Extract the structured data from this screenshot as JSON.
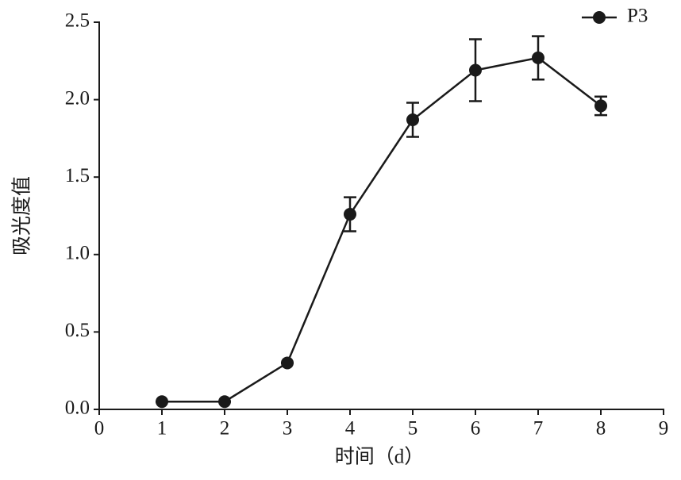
{
  "chart_data": {
    "type": "line",
    "x_label": "时间（d）",
    "y_label": "吸光度值",
    "x": [
      1,
      2,
      3,
      4,
      5,
      6,
      7,
      8
    ],
    "series": [
      {
        "name": "P3",
        "color": "#1a1a1a",
        "values": [
          0.05,
          0.05,
          0.3,
          1.26,
          1.87,
          2.19,
          2.27,
          1.96
        ],
        "errors": [
          0,
          0,
          0,
          0.11,
          0.11,
          0.2,
          0.14,
          0.06
        ]
      }
    ],
    "xlim": [
      0,
      9
    ],
    "xticks": [
      0,
      1,
      2,
      3,
      4,
      5,
      6,
      7,
      8,
      9
    ],
    "ylim": [
      0,
      2.5
    ],
    "yticks": [
      {
        "value": 0,
        "label": "0.0"
      },
      0.5,
      {
        "value": 1,
        "label": "1.0"
      },
      1.5,
      {
        "value": 2,
        "label": "2.0"
      },
      2.5
    ],
    "legend": "top-right"
  }
}
